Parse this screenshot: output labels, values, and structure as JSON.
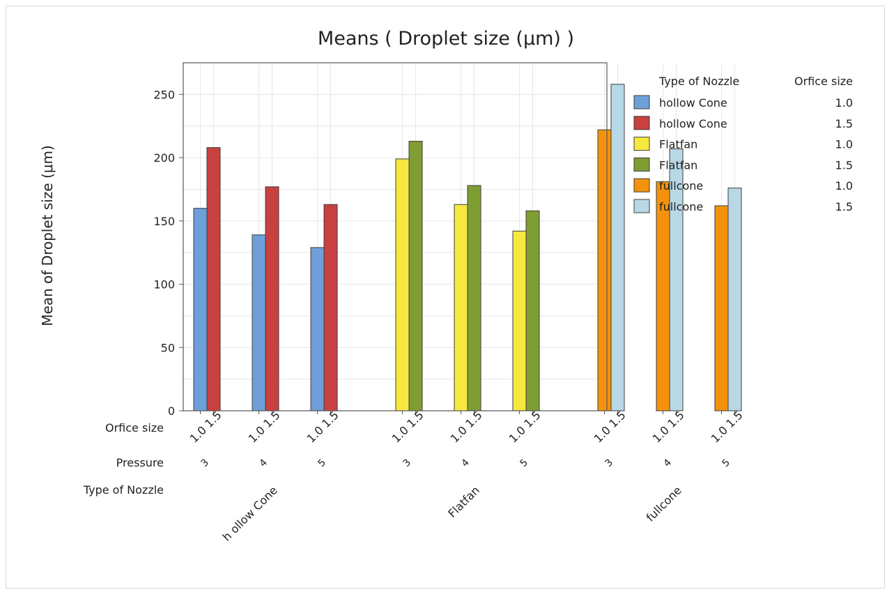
{
  "chart_data": {
    "type": "bar",
    "title": "Means ( Droplet size (μm) )",
    "ylabel": "Mean of Droplet size (μm)",
    "xlabel": "",
    "ylim": [
      0,
      275
    ],
    "yticks": [
      0,
      50,
      100,
      150,
      200,
      250
    ],
    "grid": true,
    "legend_position": "right",
    "axis_row_labels": {
      "orifice": "Orfice size",
      "pressure": "Pressure",
      "nozzle": "Type of Nozzle"
    },
    "legend": {
      "header_nozzle": "Type of Nozzle",
      "header_orifice": "Orfice size",
      "entries": [
        {
          "nozzle": "hollow Cone",
          "orifice": "1.0",
          "color": "#6f9fd8"
        },
        {
          "nozzle": "hollow Cone",
          "orifice": "1.5",
          "color": "#c84040"
        },
        {
          "nozzle": "Flatfan",
          "orifice": "1.0",
          "color": "#f7e840"
        },
        {
          "nozzle": "Flatfan",
          "orifice": "1.5",
          "color": "#7e9d33"
        },
        {
          "nozzle": "fullcone",
          "orifice": "1.0",
          "color": "#f4930b"
        },
        {
          "nozzle": "fullcone",
          "orifice": "1.5",
          "color": "#b8d8e6"
        }
      ]
    },
    "groups": [
      {
        "nozzle": "hollow Cone",
        "nozzle_label": "h ollow Cone",
        "pressures": [
          {
            "pressure": "3",
            "orifice_labels": [
              "1.0",
              "1.5"
            ],
            "tick_label": "1.0 1.5",
            "values": [
              160,
              208
            ]
          },
          {
            "pressure": "4",
            "orifice_labels": [
              "1.0",
              "1.5"
            ],
            "tick_label": "1.0 1.5",
            "values": [
              139,
              177
            ]
          },
          {
            "pressure": "5",
            "orifice_labels": [
              "1.0",
              "1.5"
            ],
            "tick_label": "1.0 1.5",
            "values": [
              129,
              163
            ]
          }
        ]
      },
      {
        "nozzle": "Flatfan",
        "nozzle_label": "Flatfan",
        "pressures": [
          {
            "pressure": "3",
            "orifice_labels": [
              "1.0",
              "1.5"
            ],
            "tick_label": "1.0 1.5",
            "values": [
              199,
              213
            ]
          },
          {
            "pressure": "4",
            "orifice_labels": [
              "1.0",
              "1.5"
            ],
            "tick_label": "1.0 1.5",
            "values": [
              163,
              178
            ]
          },
          {
            "pressure": "5",
            "orifice_labels": [
              "1.0",
              "1.5"
            ],
            "tick_label": "1.0 1.5",
            "values": [
              142,
              158
            ]
          }
        ]
      },
      {
        "nozzle": "fullcone",
        "nozzle_label": "fullcone",
        "pressures": [
          {
            "pressure": "3",
            "orifice_labels": [
              "1.0",
              "1.5"
            ],
            "tick_label": "1.0 1.5",
            "values": [
              222,
              258
            ]
          },
          {
            "pressure": "4",
            "orifice_labels": [
              "1.0",
              "1.5"
            ],
            "tick_label": "1.0 1.5",
            "values": [
              181,
              207
            ]
          },
          {
            "pressure": "5",
            "orifice_labels": [
              "1.0",
              "1.5"
            ],
            "tick_label": "1.0 1.5",
            "values": [
              162,
              176
            ]
          }
        ]
      }
    ]
  }
}
